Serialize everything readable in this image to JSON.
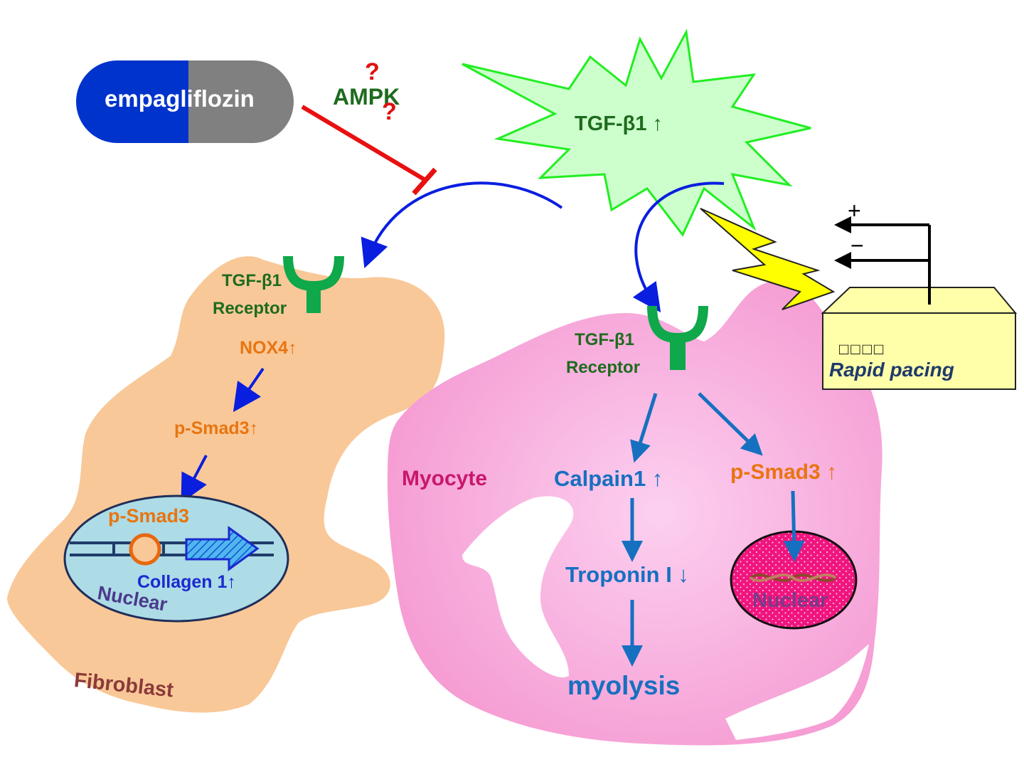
{
  "drug": {
    "name": "empagliflozin"
  },
  "ampk": {
    "label": "AMPK",
    "question_mark": "?"
  },
  "tgf": {
    "label": "TGF-β1",
    "arrow": "↑"
  },
  "fibroblast": {
    "cell_label": "Fibroblast",
    "receptor_line1": "TGF-β1",
    "receptor_line2": "Receptor",
    "nox4": "NOX4↑",
    "psmad3": "p-Smad3↑",
    "nucleus_psmad3": "p-Smad3",
    "collagen": "Collagen 1↑",
    "nucleus_label": "Nuclear"
  },
  "myocyte": {
    "cell_label": "Myocyte",
    "receptor_line1": "TGF-β1",
    "receptor_line2": "Receptor",
    "calpain": "Calpain1 ↑",
    "psmad3": "p-Smad3 ↑",
    "troponin": "Troponin I ↓",
    "myolysis": "myolysis",
    "nucleus_label": "Nuclear"
  },
  "pacer": {
    "plus": "+",
    "minus": "−",
    "boxes": "□□□□",
    "label": "Rapid pacing"
  },
  "colors": {
    "drug_blue": "#0033CC",
    "drug_gray": "#808080",
    "green_text": "#1E6B1E",
    "receptor_green": "#0FA84A",
    "orange_text": "#E87511",
    "blue_text": "#1670C0",
    "inhibit_red": "#E81010",
    "fibroblast_fill": "#F9C898",
    "myocyte_fill": "#F9A8D8",
    "nucleus_blue": "#ADDBE6"
  }
}
